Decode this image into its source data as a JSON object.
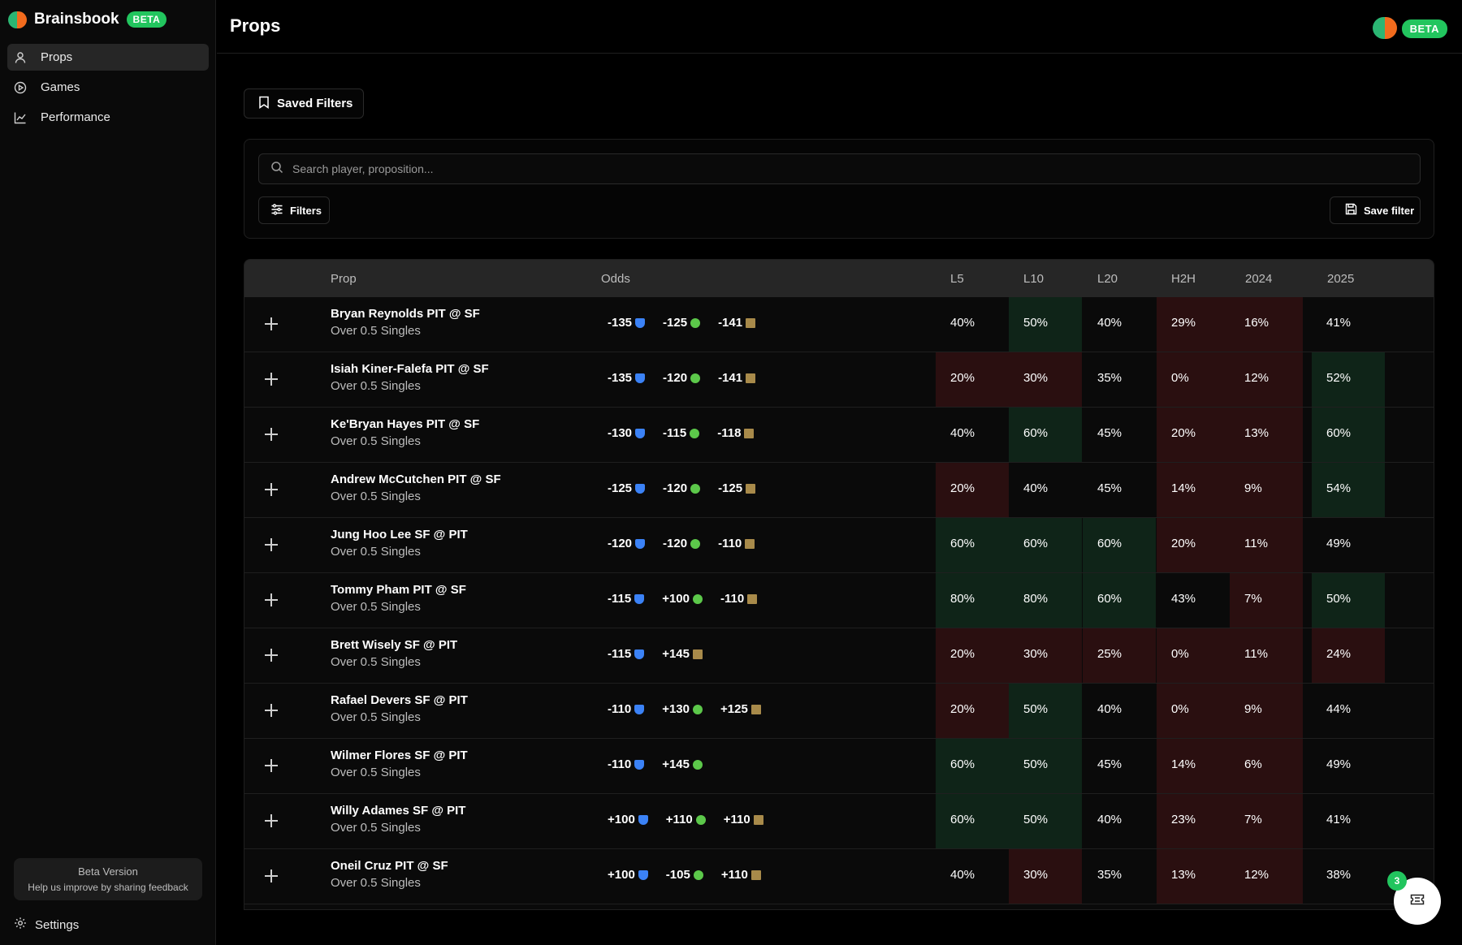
{
  "brand": {
    "name": "Brainsbook",
    "badge": "BETA"
  },
  "sidebar": {
    "items": [
      {
        "label": "Props",
        "icon": "user-icon",
        "active": true
      },
      {
        "label": "Games",
        "icon": "play-circle-icon",
        "active": false
      },
      {
        "label": "Performance",
        "icon": "line-chart-icon",
        "active": false
      }
    ],
    "feedback": {
      "title": "Beta Version",
      "text": "Help us improve by sharing feedback"
    },
    "settings_label": "Settings"
  },
  "header": {
    "title": "Props",
    "badge": "BETA"
  },
  "controls": {
    "saved_filters_label": "Saved Filters",
    "search_placeholder": "Search player, proposition...",
    "filters_label": "Filters",
    "save_filter_label": "Save filter"
  },
  "table": {
    "columns": [
      "Prop",
      "Odds",
      "L5",
      "L10",
      "L20",
      "H2H",
      "2024",
      "2025"
    ],
    "rows": [
      {
        "player": "Bryan Reynolds PIT @ SF",
        "prop": "Over 0.5 Singles",
        "odds": [
          "-135",
          "-125",
          "-141"
        ],
        "stats": [
          "40%",
          "50%",
          "40%",
          "29%",
          "16%",
          "41%"
        ],
        "tones": [
          "none",
          "green",
          "none",
          "red",
          "red",
          "none"
        ]
      },
      {
        "player": "Isiah Kiner-Falefa PIT @ SF",
        "prop": "Over 0.5 Singles",
        "odds": [
          "-135",
          "-120",
          "-141"
        ],
        "stats": [
          "20%",
          "30%",
          "35%",
          "0%",
          "12%",
          "52%"
        ],
        "tones": [
          "red",
          "red",
          "none",
          "red",
          "red",
          "green"
        ]
      },
      {
        "player": "Ke'Bryan Hayes PIT @ SF",
        "prop": "Over 0.5 Singles",
        "odds": [
          "-130",
          "-115",
          "-118"
        ],
        "stats": [
          "40%",
          "60%",
          "45%",
          "20%",
          "13%",
          "60%"
        ],
        "tones": [
          "none",
          "green",
          "none",
          "red",
          "red",
          "green"
        ]
      },
      {
        "player": "Andrew McCutchen PIT @ SF",
        "prop": "Over 0.5 Singles",
        "odds": [
          "-125",
          "-120",
          "-125"
        ],
        "stats": [
          "20%",
          "40%",
          "45%",
          "14%",
          "9%",
          "54%"
        ],
        "tones": [
          "red",
          "none",
          "none",
          "red",
          "red",
          "green"
        ]
      },
      {
        "player": "Jung Hoo Lee SF @ PIT",
        "prop": "Over 0.5 Singles",
        "odds": [
          "-120",
          "-120",
          "-110"
        ],
        "stats": [
          "60%",
          "60%",
          "60%",
          "20%",
          "11%",
          "49%"
        ],
        "tones": [
          "green",
          "green",
          "green",
          "red",
          "red",
          "none"
        ]
      },
      {
        "player": "Tommy Pham PIT @ SF",
        "prop": "Over 0.5 Singles",
        "odds": [
          "-115",
          "+100",
          "-110"
        ],
        "stats": [
          "80%",
          "80%",
          "60%",
          "43%",
          "7%",
          "50%"
        ],
        "tones": [
          "green",
          "green",
          "green",
          "none",
          "red",
          "green"
        ]
      },
      {
        "player": "Brett Wisely SF @ PIT",
        "prop": "Over 0.5 Singles",
        "odds": [
          "-115",
          "+145"
        ],
        "stats": [
          "20%",
          "30%",
          "25%",
          "0%",
          "11%",
          "24%"
        ],
        "tones": [
          "red",
          "red",
          "red",
          "red",
          "red",
          "red"
        ]
      },
      {
        "player": "Rafael Devers SF @ PIT",
        "prop": "Over 0.5 Singles",
        "odds": [
          "-110",
          "+130",
          "+125"
        ],
        "stats": [
          "20%",
          "50%",
          "40%",
          "0%",
          "9%",
          "44%"
        ],
        "tones": [
          "red",
          "green",
          "none",
          "red",
          "red",
          "none"
        ]
      },
      {
        "player": "Wilmer Flores SF @ PIT",
        "prop": "Over 0.5 Singles",
        "odds": [
          "-110",
          "+145"
        ],
        "stats": [
          "60%",
          "50%",
          "45%",
          "14%",
          "6%",
          "49%"
        ],
        "tones": [
          "green",
          "green",
          "none",
          "red",
          "red",
          "none"
        ]
      },
      {
        "player": "Willy Adames SF @ PIT",
        "prop": "Over 0.5 Singles",
        "odds": [
          "+100",
          "+110",
          "+110"
        ],
        "stats": [
          "60%",
          "50%",
          "40%",
          "23%",
          "7%",
          "41%"
        ],
        "tones": [
          "green",
          "green",
          "none",
          "red",
          "red",
          "none"
        ]
      },
      {
        "player": "Oneil Cruz PIT @ SF",
        "prop": "Over 0.5 Singles",
        "odds": [
          "+100",
          "-105",
          "+110"
        ],
        "stats": [
          "40%",
          "30%",
          "35%",
          "13%",
          "12%",
          "38%"
        ],
        "tones": [
          "none",
          "red",
          "none",
          "red",
          "red",
          "none"
        ]
      }
    ]
  },
  "fab": {
    "badge": "3",
    "icon": "ticket-icon"
  },
  "colors": {
    "accent": "#22c55e",
    "green_cell": "#0f2418",
    "red_cell": "#2a0f10"
  }
}
